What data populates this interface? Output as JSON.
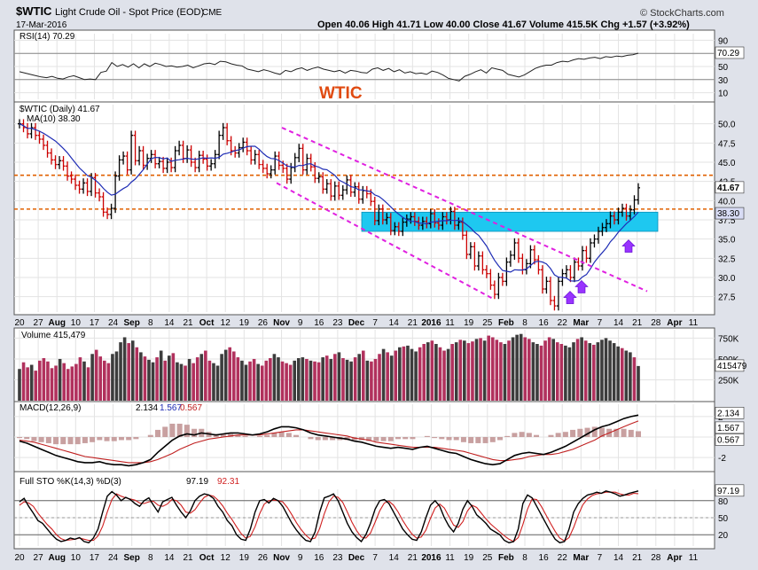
{
  "header": {
    "symbol": "$WTIC",
    "name": "Light Crude Oil - Spot Price (EOD)",
    "exchange": "CME",
    "date": "17-Mar-2016",
    "ohlc_text": "Open 40.06  High 41.71  Low 40.00  Close 41.67  Volume 415.5K  Chg +1.57 (+3.92%)",
    "brand": "© StockCharts.com",
    "watermark": "WTIC"
  },
  "colors": {
    "price_up": "#000000",
    "price_down": "#cc0000",
    "ma": "#1f2db5",
    "channel": "#e020e0",
    "zone": "#1ec8f0",
    "hline": "#e06000",
    "arrow": "#9933ff",
    "volume_up": "#3c3c3c",
    "volume_down": "#b1315d",
    "macd_line": "#000000",
    "macd_signal": "#c02020",
    "macd_hist": "#c8a0a0",
    "sto_k": "#000000",
    "sto_d": "#d02020"
  },
  "chart_data": [
    {
      "type": "line",
      "panel": "rsi",
      "label": "RSI(14) 70.29",
      "last": "70.29",
      "ylim": [
        0,
        100
      ],
      "yticks": [
        "90",
        "70",
        "50",
        "30",
        "10"
      ],
      "values": [
        42,
        40,
        38,
        36,
        34,
        33,
        35,
        32,
        31,
        34,
        36,
        33,
        30,
        31,
        30,
        41,
        43,
        56,
        50,
        53,
        49,
        54,
        48,
        54,
        50,
        55,
        53,
        50,
        51,
        49,
        50,
        52,
        48,
        51,
        54,
        55,
        53,
        58,
        57,
        54,
        52,
        51,
        46,
        44,
        42,
        45,
        43,
        40,
        38,
        44,
        42,
        46,
        48,
        44,
        47,
        49,
        46,
        44,
        42,
        44,
        40,
        44,
        43,
        41,
        40,
        46,
        48,
        44,
        47,
        42,
        45,
        40,
        42,
        39,
        40,
        38,
        43,
        41,
        37,
        32,
        30,
        28,
        35,
        38,
        42,
        45,
        40,
        48,
        46,
        44,
        38,
        36,
        34,
        37,
        42,
        47,
        50,
        52,
        52,
        56,
        58,
        57,
        60,
        62,
        61,
        63,
        64,
        62,
        65,
        64,
        66,
        65,
        67,
        68,
        70.29
      ]
    },
    {
      "type": "candlestick",
      "panel": "price",
      "label": "$WTIC (Daily) 41.67",
      "ylim": [
        25.5,
        52.5
      ],
      "yticks": [
        "50.0",
        "47.5",
        "45.0",
        "42.5",
        "40.0",
        "37.5",
        "35.0",
        "32.5",
        "30.0",
        "27.5"
      ],
      "last_close": "41.67",
      "x_ticks": [
        "20",
        "27",
        "Aug",
        "10",
        "17",
        "24",
        "Sep",
        "8",
        "14",
        "21",
        "Oct",
        "12",
        "19",
        "26",
        "Nov",
        "9",
        "16",
        "23",
        "Dec",
        "7",
        "14",
        "21",
        "2016",
        "11",
        "19",
        "25",
        "Feb",
        "8",
        "16",
        "22",
        "Mar",
        "7",
        "14",
        "21",
        "28",
        "Apr",
        "11"
      ],
      "closes": [
        50.0,
        49.5,
        48.7,
        49.5,
        48.5,
        48.0,
        47.2,
        46.2,
        45.3,
        44.7,
        45.2,
        44.5,
        43.2,
        42.8,
        42.0,
        41.5,
        42.3,
        41.2,
        43.0,
        41.0,
        40.5,
        38.5,
        38.2,
        39.0,
        43.2,
        45.3,
        45.8,
        44.0,
        48.5,
        45.2,
        46.5,
        44.6,
        45.5,
        46.0,
        44.8,
        45.1,
        44.2,
        45.0,
        44.3,
        46.5,
        47.2,
        45.5,
        46.6,
        45.0,
        44.3,
        45.9,
        45.4,
        44.5,
        44.8,
        46.0,
        48.5,
        49.5,
        47.8,
        46.5,
        46.2,
        46.9,
        47.6,
        46.5,
        45.3,
        46.0,
        44.7,
        44.2,
        43.5,
        44.0,
        45.8,
        44.6,
        44.2,
        42.8,
        44.3,
        45.6,
        46.8,
        44.0,
        45.5,
        44.4,
        42.9,
        43.1,
        41.5,
        42.2,
        40.6,
        41.9,
        40.7,
        41.4,
        42.7,
        41.1,
        41.8,
        40.2,
        41.3,
        40.9,
        39.9,
        37.4,
        38.9,
        37.5,
        37.8,
        36.1,
        36.6,
        36.0,
        37.2,
        37.6,
        37.9,
        37.3,
        36.8,
        37.3,
        37.0,
        38.3,
        37.1,
        36.8,
        37.9,
        37.5,
        38.6,
        36.8,
        37.2,
        35.5,
        33.0,
        34.0,
        31.5,
        32.8,
        31.0,
        30.5,
        29.0,
        27.8,
        30.0,
        29.5,
        32.0,
        32.9,
        34.5,
        32.5,
        31.0,
        31.8,
        33.6,
        32.3,
        31.0,
        28.5,
        29.5,
        27.0,
        26.3,
        29.5,
        30.5,
        31.0,
        30.0,
        32.0,
        31.5,
        33.5,
        32.5,
        34.5,
        35.0,
        36.0,
        36.5,
        37.0,
        38.0,
        37.5,
        38.5,
        39.0,
        38.0,
        38.8,
        40.1,
        41.67
      ]
    },
    {
      "type": "line",
      "panel": "price",
      "label": "MA(10) 38.30",
      "last": "38.30"
    },
    {
      "type": "bar",
      "panel": "volume",
      "label": "Volume 415,479",
      "last": "415479",
      "ylim": [
        0,
        850000
      ],
      "yticks": [
        "750K",
        "500K",
        "250K"
      ],
      "values": [
        380000,
        460000,
        400000,
        430000,
        360000,
        480000,
        510000,
        470000,
        390000,
        420000,
        500000,
        450000,
        380000,
        410000,
        440000,
        520000,
        470000,
        400000,
        560000,
        610000,
        530000,
        480000,
        450000,
        560000,
        590000,
        700000,
        760000,
        690000,
        720000,
        640000,
        580000,
        530000,
        490000,
        460000,
        520000,
        600000,
        480000,
        540000,
        570000,
        460000,
        440000,
        420000,
        500000,
        450000,
        520000,
        560000,
        600000,
        480000,
        450000,
        420000,
        560000,
        610000,
        640000,
        590000,
        520000,
        480000,
        430000,
        470000,
        500000,
        440000,
        420000,
        480000,
        510000,
        560000,
        520000,
        470000,
        450000,
        430000,
        480000,
        510000,
        520000,
        500000,
        480000,
        470000,
        460000,
        520000,
        540000,
        500000,
        560000,
        580000,
        510000,
        490000,
        470000,
        520000,
        560000,
        600000,
        480000,
        470000,
        500000,
        560000,
        620000,
        580000,
        540000,
        600000,
        640000,
        650000,
        660000,
        620000,
        590000,
        640000,
        680000,
        700000,
        720000,
        680000,
        640000,
        600000,
        620000,
        680000,
        700000,
        730000,
        720000,
        690000,
        710000,
        740000,
        750000,
        720000,
        780000,
        760000,
        730000,
        700000,
        680000,
        720000,
        760000,
        790000,
        800000,
        760000,
        740000,
        700000,
        680000,
        660000,
        720000,
        760000,
        740000,
        700000,
        680000,
        660000,
        640000,
        700000,
        740000,
        760000,
        720000,
        690000,
        670000,
        700000,
        730000,
        750000,
        720000,
        690000,
        650000,
        630000,
        600000,
        580000,
        520000,
        415479
      ]
    },
    {
      "type": "line",
      "panel": "macd",
      "label": "MACD(12,26,9)",
      "values_text": [
        "2.134",
        "1.567",
        "0.567"
      ],
      "yticks": [
        "2",
        "0",
        "-2"
      ],
      "macd_line": [
        -0.4,
        -0.6,
        -0.9,
        -1.2,
        -1.5,
        -1.8,
        -2.0,
        -2.2,
        -2.4,
        -2.5,
        -2.5,
        -2.4,
        -2.6,
        -2.7,
        -2.7,
        -2.8,
        -2.7,
        -2.5,
        -2.2,
        -1.5,
        -0.9,
        -0.3,
        0.1,
        0.3,
        0.2,
        0.4,
        0.3,
        0.2,
        0.3,
        0.4,
        0.4,
        0.3,
        0.2,
        0.3,
        0.5,
        0.8,
        1.0,
        1.0,
        0.9,
        0.7,
        0.4,
        0.2,
        0.1,
        0.0,
        -0.1,
        -0.2,
        -0.4,
        -0.5,
        -0.7,
        -0.9,
        -1.0,
        -1.1,
        -1.0,
        -1.1,
        -1.2,
        -1.0,
        -0.9,
        -1.1,
        -1.3,
        -1.5,
        -1.6,
        -1.9,
        -2.2,
        -2.4,
        -2.6,
        -2.7,
        -2.6,
        -2.2,
        -1.8,
        -1.6,
        -1.5,
        -1.6,
        -1.7,
        -1.5,
        -1.2,
        -0.9,
        -0.5,
        -0.1,
        0.3,
        0.7,
        1.0,
        1.2,
        1.5,
        1.8,
        2.0,
        2.134
      ],
      "signal_line": [
        -0.3,
        -0.4,
        -0.5,
        -0.7,
        -0.9,
        -1.1,
        -1.3,
        -1.5,
        -1.7,
        -1.9,
        -2.0,
        -2.1,
        -2.2,
        -2.3,
        -2.4,
        -2.5,
        -2.5,
        -2.5,
        -2.4,
        -2.2,
        -1.9,
        -1.6,
        -1.2,
        -0.9,
        -0.6,
        -0.4,
        -0.2,
        -0.1,
        0.0,
        0.1,
        0.2,
        0.2,
        0.2,
        0.2,
        0.3,
        0.4,
        0.5,
        0.6,
        0.7,
        0.7,
        0.6,
        0.5,
        0.4,
        0.3,
        0.2,
        0.1,
        -0.1,
        -0.2,
        -0.3,
        -0.5,
        -0.6,
        -0.7,
        -0.8,
        -0.9,
        -1.0,
        -1.0,
        -1.0,
        -1.0,
        -1.1,
        -1.2,
        -1.3,
        -1.4,
        -1.6,
        -1.8,
        -2.0,
        -2.2,
        -2.3,
        -2.3,
        -2.2,
        -2.1,
        -1.9,
        -1.8,
        -1.7,
        -1.7,
        -1.6,
        -1.4,
        -1.2,
        -0.9,
        -0.6,
        -0.3,
        0.1,
        0.4,
        0.7,
        1.0,
        1.3,
        1.567
      ]
    },
    {
      "type": "line",
      "panel": "sto",
      "label": "Full STO %K(14,3) %D(3)",
      "values_text": [
        "97.19",
        "92.31"
      ],
      "yticks": [
        "80",
        "50",
        "20"
      ],
      "ylim": [
        0,
        100
      ],
      "k_line": [
        78,
        84,
        70,
        58,
        45,
        40,
        30,
        20,
        12,
        8,
        10,
        14,
        12,
        15,
        8,
        6,
        14,
        30,
        60,
        88,
        96,
        90,
        80,
        86,
        82,
        75,
        70,
        80,
        85,
        72,
        60,
        78,
        82,
        86,
        72,
        60,
        50,
        62,
        80,
        88,
        92,
        90,
        84,
        70,
        60,
        45,
        36,
        20,
        12,
        10,
        30,
        60,
        80,
        82,
        76,
        84,
        80,
        70,
        55,
        40,
        28,
        18,
        10,
        8,
        25,
        60,
        85,
        88,
        92,
        80,
        60,
        40,
        25,
        15,
        8,
        20,
        40,
        65,
        80,
        82,
        75,
        60,
        45,
        30,
        20,
        12,
        10,
        25,
        50,
        72,
        80,
        70,
        50,
        35,
        25,
        40,
        65,
        80,
        70,
        55,
        48,
        40,
        30,
        25,
        20,
        10,
        6,
        8,
        30,
        75,
        90,
        85,
        70,
        55,
        40,
        25,
        12,
        6,
        8,
        30,
        60,
        75,
        84,
        90,
        92,
        95,
        93,
        97,
        95,
        92,
        88,
        90,
        93,
        95,
        97.19
      ],
      "d_line": [
        72,
        78,
        76,
        70,
        58,
        48,
        38,
        30,
        20,
        13,
        10,
        11,
        12,
        14,
        12,
        10,
        10,
        18,
        35,
        60,
        82,
        92,
        88,
        85,
        83,
        81,
        76,
        75,
        78,
        79,
        72,
        70,
        74,
        82,
        80,
        72,
        60,
        58,
        64,
        76,
        86,
        90,
        88,
        81,
        71,
        58,
        47,
        34,
        22,
        14,
        17,
        34,
        57,
        74,
        80,
        81,
        80,
        78,
        68,
        55,
        41,
        29,
        19,
        12,
        14,
        31,
        57,
        78,
        88,
        86,
        77,
        60,
        42,
        27,
        16,
        14,
        23,
        42,
        62,
        76,
        79,
        72,
        60,
        45,
        32,
        21,
        14,
        16,
        28,
        49,
        67,
        74,
        67,
        52,
        37,
        33,
        43,
        62,
        72,
        68,
        58,
        48,
        39,
        32,
        25,
        18,
        12,
        8,
        15,
        38,
        65,
        83,
        82,
        70,
        55,
        40,
        26,
        14,
        9,
        15,
        33,
        55,
        73,
        83,
        89,
        92,
        93,
        95,
        95,
        95,
        92,
        90,
        90,
        93,
        92.31
      ]
    }
  ]
}
